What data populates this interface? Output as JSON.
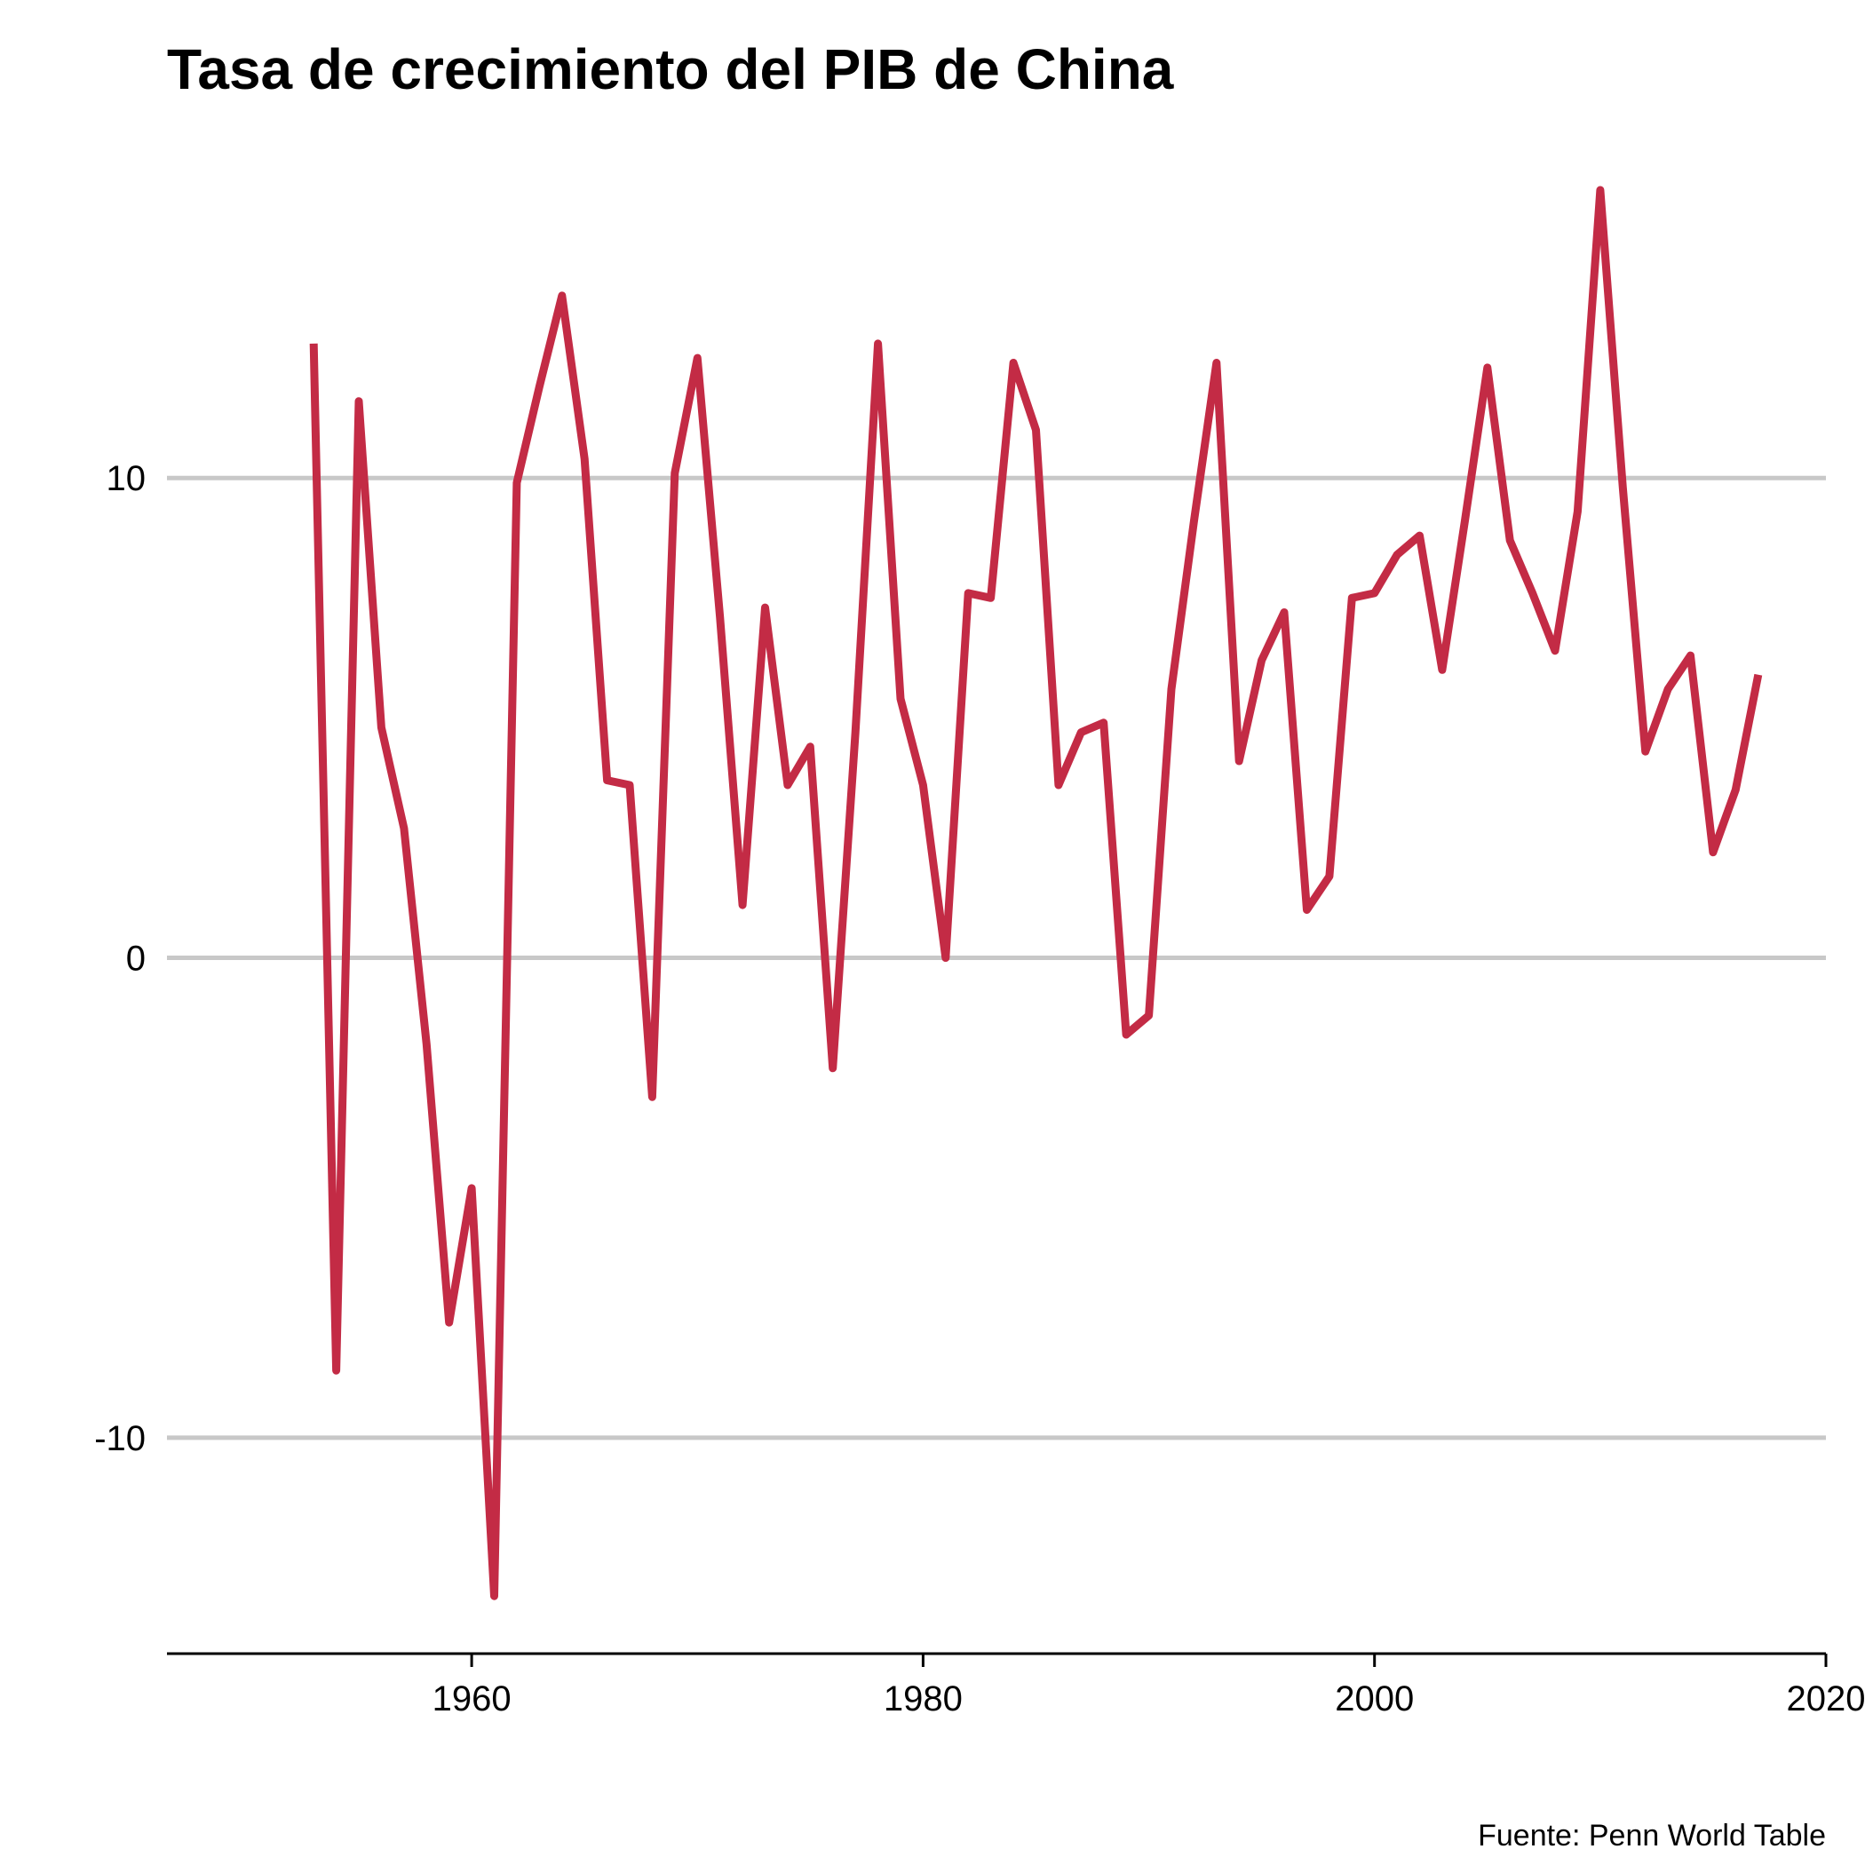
{
  "chart_data": {
    "type": "line",
    "title": "Tasa de crecimiento del PIB de China",
    "caption": "Fuente: Penn World Table",
    "xlabel": "",
    "ylabel": "",
    "xlim": [
      1946.5,
      2020
    ],
    "ylim": [
      -14.5,
      17
    ],
    "x_ticks": [
      1960,
      1980,
      2000,
      2020
    ],
    "y_ticks": [
      -10,
      0,
      10
    ],
    "grid": "horizontal major",
    "legend": "none",
    "colors": {
      "line": "#c32b45",
      "grid": "#c8c8c8",
      "axis": "#000000"
    },
    "series": [
      {
        "x": [
          1953,
          1954,
          1955,
          1956,
          1957,
          1958,
          1959,
          1960,
          1961,
          1962,
          1963,
          1964,
          1965,
          1966,
          1967,
          1968,
          1969,
          1970,
          1971,
          1972,
          1973,
          1974,
          1975,
          1976,
          1977,
          1978,
          1979,
          1980,
          1981,
          1982,
          1983,
          1984,
          1985,
          1986,
          1987,
          1988,
          1989,
          1990,
          1991,
          1992,
          1993,
          1994,
          1995,
          1996,
          1997,
          1998,
          1999,
          2000,
          2001,
          2002,
          2003,
          2004,
          2005,
          2006,
          2007,
          2008,
          2009,
          2010,
          2011,
          2012,
          2013,
          2014,
          2015,
          2016,
          2017
        ],
        "values": [
          12.8,
          -8.6,
          11.6,
          4.8,
          2.7,
          -1.8,
          -7.6,
          -4.8,
          -13.3,
          9.9,
          11.9,
          13.8,
          10.4,
          3.7,
          3.6,
          -2.9,
          10.1,
          12.5,
          7.1,
          1.1,
          7.3,
          3.6,
          4.4,
          -2.3,
          4.7,
          12.8,
          5.4,
          3.6,
          0.0,
          7.6,
          7.5,
          12.4,
          11.0,
          3.6,
          4.7,
          4.9,
          -1.6,
          -1.2,
          5.6,
          9.1,
          12.4,
          4.1,
          6.2,
          7.2,
          1.0,
          1.7,
          7.5,
          7.6,
          8.4,
          8.8,
          6.0,
          9.1,
          12.3,
          8.7,
          7.6,
          6.4,
          9.3,
          16.0,
          9.8,
          4.3,
          5.6,
          6.3,
          2.2,
          3.5,
          5.9
        ]
      }
    ]
  }
}
